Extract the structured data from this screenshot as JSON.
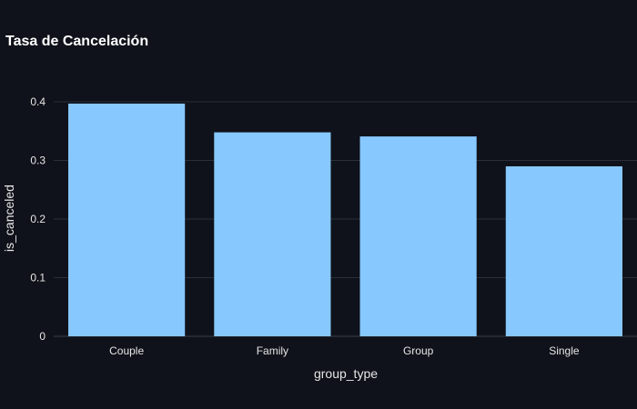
{
  "chart_data": {
    "type": "bar",
    "title": "Tasa de Cancelación",
    "xlabel": "group_type",
    "ylabel": "is_canceled",
    "categories": [
      "Couple",
      "Family",
      "Group",
      "Single"
    ],
    "values": [
      0.397,
      0.348,
      0.341,
      0.29
    ],
    "ylim": [
      0,
      0.4187
    ],
    "yticks": [
      0,
      0.1,
      0.2,
      0.3,
      0.4
    ],
    "ytick_labels": [
      "0",
      "0.1",
      "0.2",
      "0.3",
      "0.4"
    ],
    "grid": true,
    "legend": "none",
    "colors": {
      "background": "#0f121a",
      "bar": "#87c8ff",
      "grid": "#2a2f3a",
      "text": "#e6e6e6",
      "title": "#ffffff"
    }
  }
}
